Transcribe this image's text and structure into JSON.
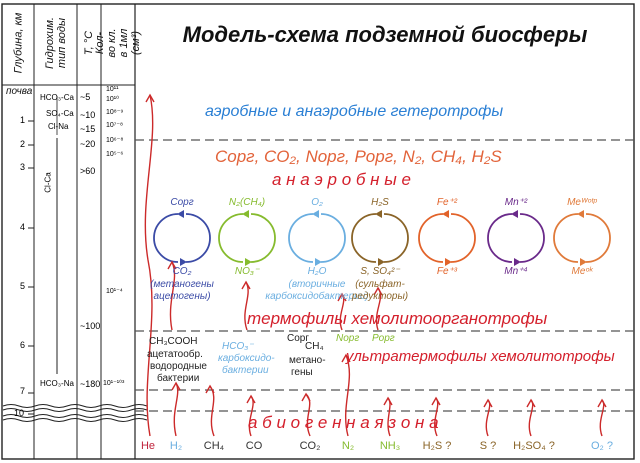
{
  "header": {
    "col_depth": "Глубина, км",
    "col_hydro": "Гидрохим. тип воды",
    "col_temp": "T, °C",
    "col_cells": "Кол-во кл. в 1мл (см³)",
    "title": "Модель-схема подземной биосферы"
  },
  "left_columns": {
    "soil": "почва",
    "depth_ticks": [
      "1",
      "2",
      "3",
      "4",
      "5",
      "6",
      "7",
      "10"
    ],
    "hydro_types": [
      "HCO₃-Ca",
      "SO₄-Ca",
      "Cl-Na",
      "Cl-Ca",
      "HCO₃-Na"
    ],
    "temps": [
      "~5",
      "~10",
      "~15",
      "~20",
      ">60",
      "~100",
      "~180"
    ],
    "cells": [
      "10¹¹",
      "10¹⁰",
      "10⁸⁻⁹",
      "10⁷⁻⁸",
      "10⁶⁻⁸",
      "10⁵⁻⁶",
      "10¹⁻⁴",
      "10¹⁻¹⁰³"
    ]
  },
  "zones": {
    "heterotrophs": "аэробные и анаэробные гетеротрофы",
    "compounds": "Cорг, CO₂, Nорг, Pорг, N₂, CH₄, H₂S",
    "anaerobic": "а н а э р о б н ы е",
    "thermophiles": "термофилы  хемолитоорганотрофы",
    "ultrathermophiles": "ультратермофилы  хемолитотрофы",
    "abiogenic": "а б и о г е н н а я   з о н а"
  },
  "cycles": [
    {
      "top": "Cорг",
      "bottom": "CO₂",
      "note1": "(метаногены",
      "note2": "ацетогены)",
      "color": "#3b4ba6"
    },
    {
      "top": "N₂(CH₄)",
      "bottom": "NO₃⁻",
      "note1": "",
      "note2": "",
      "color": "#86bb2e"
    },
    {
      "top": "O₂",
      "bottom": "H₂O",
      "note1": "(вторичные",
      "note2": "карбоксидобактерии)",
      "color": "#6aaee0"
    },
    {
      "top": "H₂S",
      "bottom": "S, SO₄²⁻",
      "note1": "(сульфат-",
      "note2": "редукторы)",
      "color": "#8a6428"
    },
    {
      "top": "Fe⁺²",
      "bottom": "Fe⁺³",
      "note1": "",
      "note2": "",
      "color": "#e2632a"
    },
    {
      "top": "Mn⁺²",
      "bottom": "Mn⁺⁴",
      "note1": "",
      "note2": "",
      "color": "#6a2a8a"
    },
    {
      "top": "Meᵂᵒᵗᵖ",
      "bottom": "Meᵒᵏ",
      "note1": "",
      "note2": "",
      "color": "#e07a3a"
    }
  ],
  "groups": {
    "acetate_title": "CH₃COOH",
    "acetate_lines": [
      "ацетатообр.",
      "водородные",
      "бактерии"
    ],
    "carboxy": [
      "HCO₃⁻",
      "карбоксидо-",
      "бактерии"
    ],
    "methanogens": [
      "Cорг",
      "CH₄",
      "метано-",
      "гены"
    ],
    "norg": "Nорг",
    "porg": "Pорг"
  },
  "gases": [
    {
      "label": "He",
      "color": "#c0243c"
    },
    {
      "label": "H₂",
      "color": "#6aaee0"
    },
    {
      "label": "CH₄",
      "color": "#333333"
    },
    {
      "label": "CO",
      "color": "#333333"
    },
    {
      "label": "CO₂",
      "color": "#333333"
    },
    {
      "label": "N₂",
      "color": "#86bb2e"
    },
    {
      "label": "NH₃",
      "color": "#86bb2e"
    },
    {
      "label": "H₂S ?",
      "color": "#8a6428"
    },
    {
      "label": "S ?",
      "color": "#8a6428"
    },
    {
      "label": "H₂SO₄ ?",
      "color": "#8a6428"
    },
    {
      "label": "O₂ ?",
      "color": "#6aaee0"
    }
  ],
  "colors": {
    "heterotrophs": "#2a7fd4",
    "compounds": "#e2633a",
    "red": "#d4202c",
    "arrow": "#cc2a2a",
    "dash": "#555555",
    "text": "#222222"
  }
}
